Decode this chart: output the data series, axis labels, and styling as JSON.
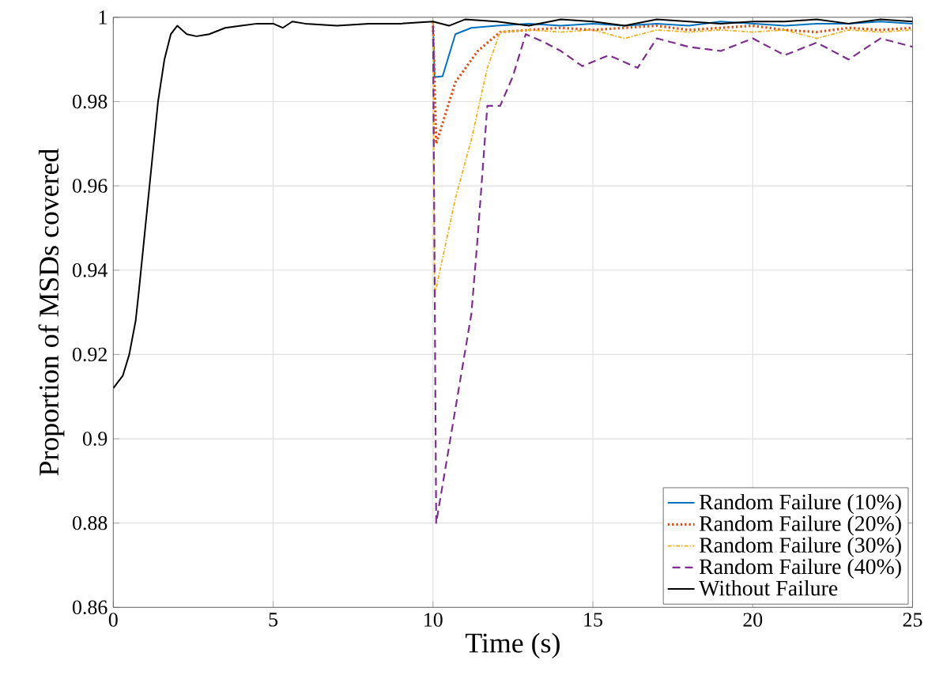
{
  "chart_data": {
    "type": "line",
    "xlabel": "Time (s)",
    "ylabel": "Proportion of MSDs covered",
    "xlim": [
      0,
      25
    ],
    "ylim": [
      0.86,
      1
    ],
    "xticks": [
      0,
      5,
      10,
      15,
      20,
      25
    ],
    "yticks": [
      0.86,
      0.88,
      0.9,
      0.92,
      0.94,
      0.96,
      0.98,
      1
    ],
    "grid": true,
    "legend": "bottom right",
    "series": [
      {
        "name": "Random Failure (10%)",
        "color": "#0072bd",
        "line_style": "solid",
        "x": [
          10,
          10.05,
          10.3,
          10.7,
          11.2,
          12,
          13,
          14,
          15,
          16,
          17,
          18,
          19,
          20,
          21,
          22,
          23,
          24,
          25
        ],
        "values": [
          0.999,
          0.9858,
          0.986,
          0.996,
          0.9975,
          0.998,
          0.9985,
          0.998,
          0.9985,
          0.998,
          0.9985,
          0.998,
          0.999,
          0.9985,
          0.998,
          0.9985,
          0.9985,
          0.999,
          0.9985
        ]
      },
      {
        "name": "Random Failure (20%)",
        "color": "#d95319",
        "line_style": "dotted",
        "x": [
          10,
          10.1,
          10.7,
          11.4,
          12.1,
          13,
          14,
          15,
          16,
          17,
          18,
          19,
          20,
          21,
          22,
          23,
          24,
          25
        ],
        "values": [
          0.999,
          0.97,
          0.9846,
          0.992,
          0.9965,
          0.997,
          0.9975,
          0.997,
          0.9975,
          0.998,
          0.997,
          0.9975,
          0.998,
          0.997,
          0.9965,
          0.9975,
          0.997,
          0.9975
        ]
      },
      {
        "name": "Random Failure (30%)",
        "color": "#edb120",
        "line_style": "dashdot",
        "x": [
          10,
          10.05,
          10.7,
          11.2,
          11.7,
          12.1,
          13,
          14,
          15,
          16,
          17,
          18,
          19,
          20,
          21,
          22,
          23,
          24,
          25
        ],
        "values": [
          0.999,
          0.934,
          0.957,
          0.971,
          0.988,
          0.9965,
          0.997,
          0.9965,
          0.997,
          0.995,
          0.997,
          0.9965,
          0.997,
          0.9965,
          0.997,
          0.995,
          0.997,
          0.9965,
          0.997
        ]
      },
      {
        "name": "Random Failure (40%)",
        "color": "#7e2f8e",
        "line_style": "dashed",
        "x": [
          10,
          10.1,
          11.2,
          11.4,
          11.7,
          12.1,
          12.5,
          12.9,
          13.5,
          14,
          14.67,
          15.5,
          16.4,
          17,
          18,
          19,
          20,
          21,
          22,
          23,
          24,
          25
        ],
        "values": [
          0.999,
          0.88,
          0.9296,
          0.948,
          0.979,
          0.979,
          0.986,
          0.996,
          0.994,
          0.992,
          0.9884,
          0.991,
          0.988,
          0.995,
          0.993,
          0.992,
          0.995,
          0.991,
          0.994,
          0.99,
          0.995,
          0.993
        ]
      },
      {
        "name": "Without Failure",
        "color": "#000000",
        "line_style": "solid",
        "x": [
          0,
          0.3,
          0.5,
          0.7,
          0.8,
          1.0,
          1.2,
          1.4,
          1.6,
          1.8,
          2.0,
          2.3,
          2.6,
          3.0,
          3.5,
          4.0,
          4.5,
          5.0,
          5.3,
          5.6,
          6,
          7,
          8,
          9,
          10,
          10.5,
          11,
          12,
          13,
          14,
          15,
          16,
          17,
          18,
          19,
          20,
          21,
          22,
          23,
          24,
          25
        ],
        "values": [
          0.912,
          0.915,
          0.92,
          0.928,
          0.935,
          0.95,
          0.965,
          0.98,
          0.99,
          0.996,
          0.998,
          0.996,
          0.9955,
          0.996,
          0.9975,
          0.998,
          0.9985,
          0.9985,
          0.9975,
          0.999,
          0.9985,
          0.998,
          0.9985,
          0.9985,
          0.999,
          0.998,
          0.9995,
          0.999,
          0.998,
          0.9995,
          0.999,
          0.998,
          0.9995,
          0.999,
          0.9985,
          0.999,
          0.999,
          0.9995,
          0.9985,
          0.9995,
          0.999
        ]
      }
    ]
  }
}
